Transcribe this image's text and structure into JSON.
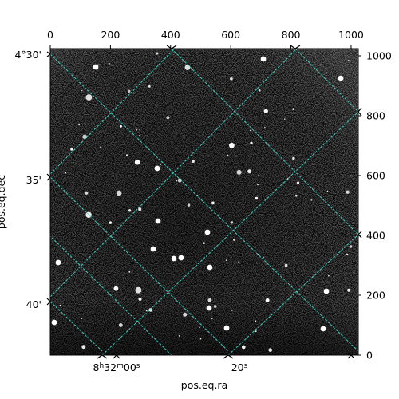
{
  "chart_data": {
    "type": "image",
    "title": "",
    "image_description": "Grayscale noisy astronomical image with scattered white stars, overlaid with a cyan dashed coordinate grid rotated about 45 degrees.",
    "colormap": "gray",
    "grid_color": "#40e0d0",
    "pixel_axes": {
      "x_range": [
        0,
        1024
      ],
      "y_range": [
        0,
        1024
      ],
      "top_ticks": [
        0,
        200,
        400,
        600,
        800,
        1000
      ],
      "right_ticks": [
        0,
        200,
        400,
        600,
        800,
        1000
      ]
    },
    "world_axes": {
      "xlabel": "pos.eq.ra",
      "ylabel": "pos.eq.dec",
      "ra_ticks": [
        {
          "label_main": "8",
          "label_h": "h",
          "label_mid": "32",
          "label_m": "m",
          "label_end": "00",
          "label_s": "s"
        },
        {
          "label_main": "20",
          "label_h": "",
          "label_mid": "",
          "label_m": "",
          "label_end": "",
          "label_s": "s"
        }
      ],
      "dec_ticks": [
        "4°30'",
        "35'",
        "40'"
      ]
    }
  }
}
